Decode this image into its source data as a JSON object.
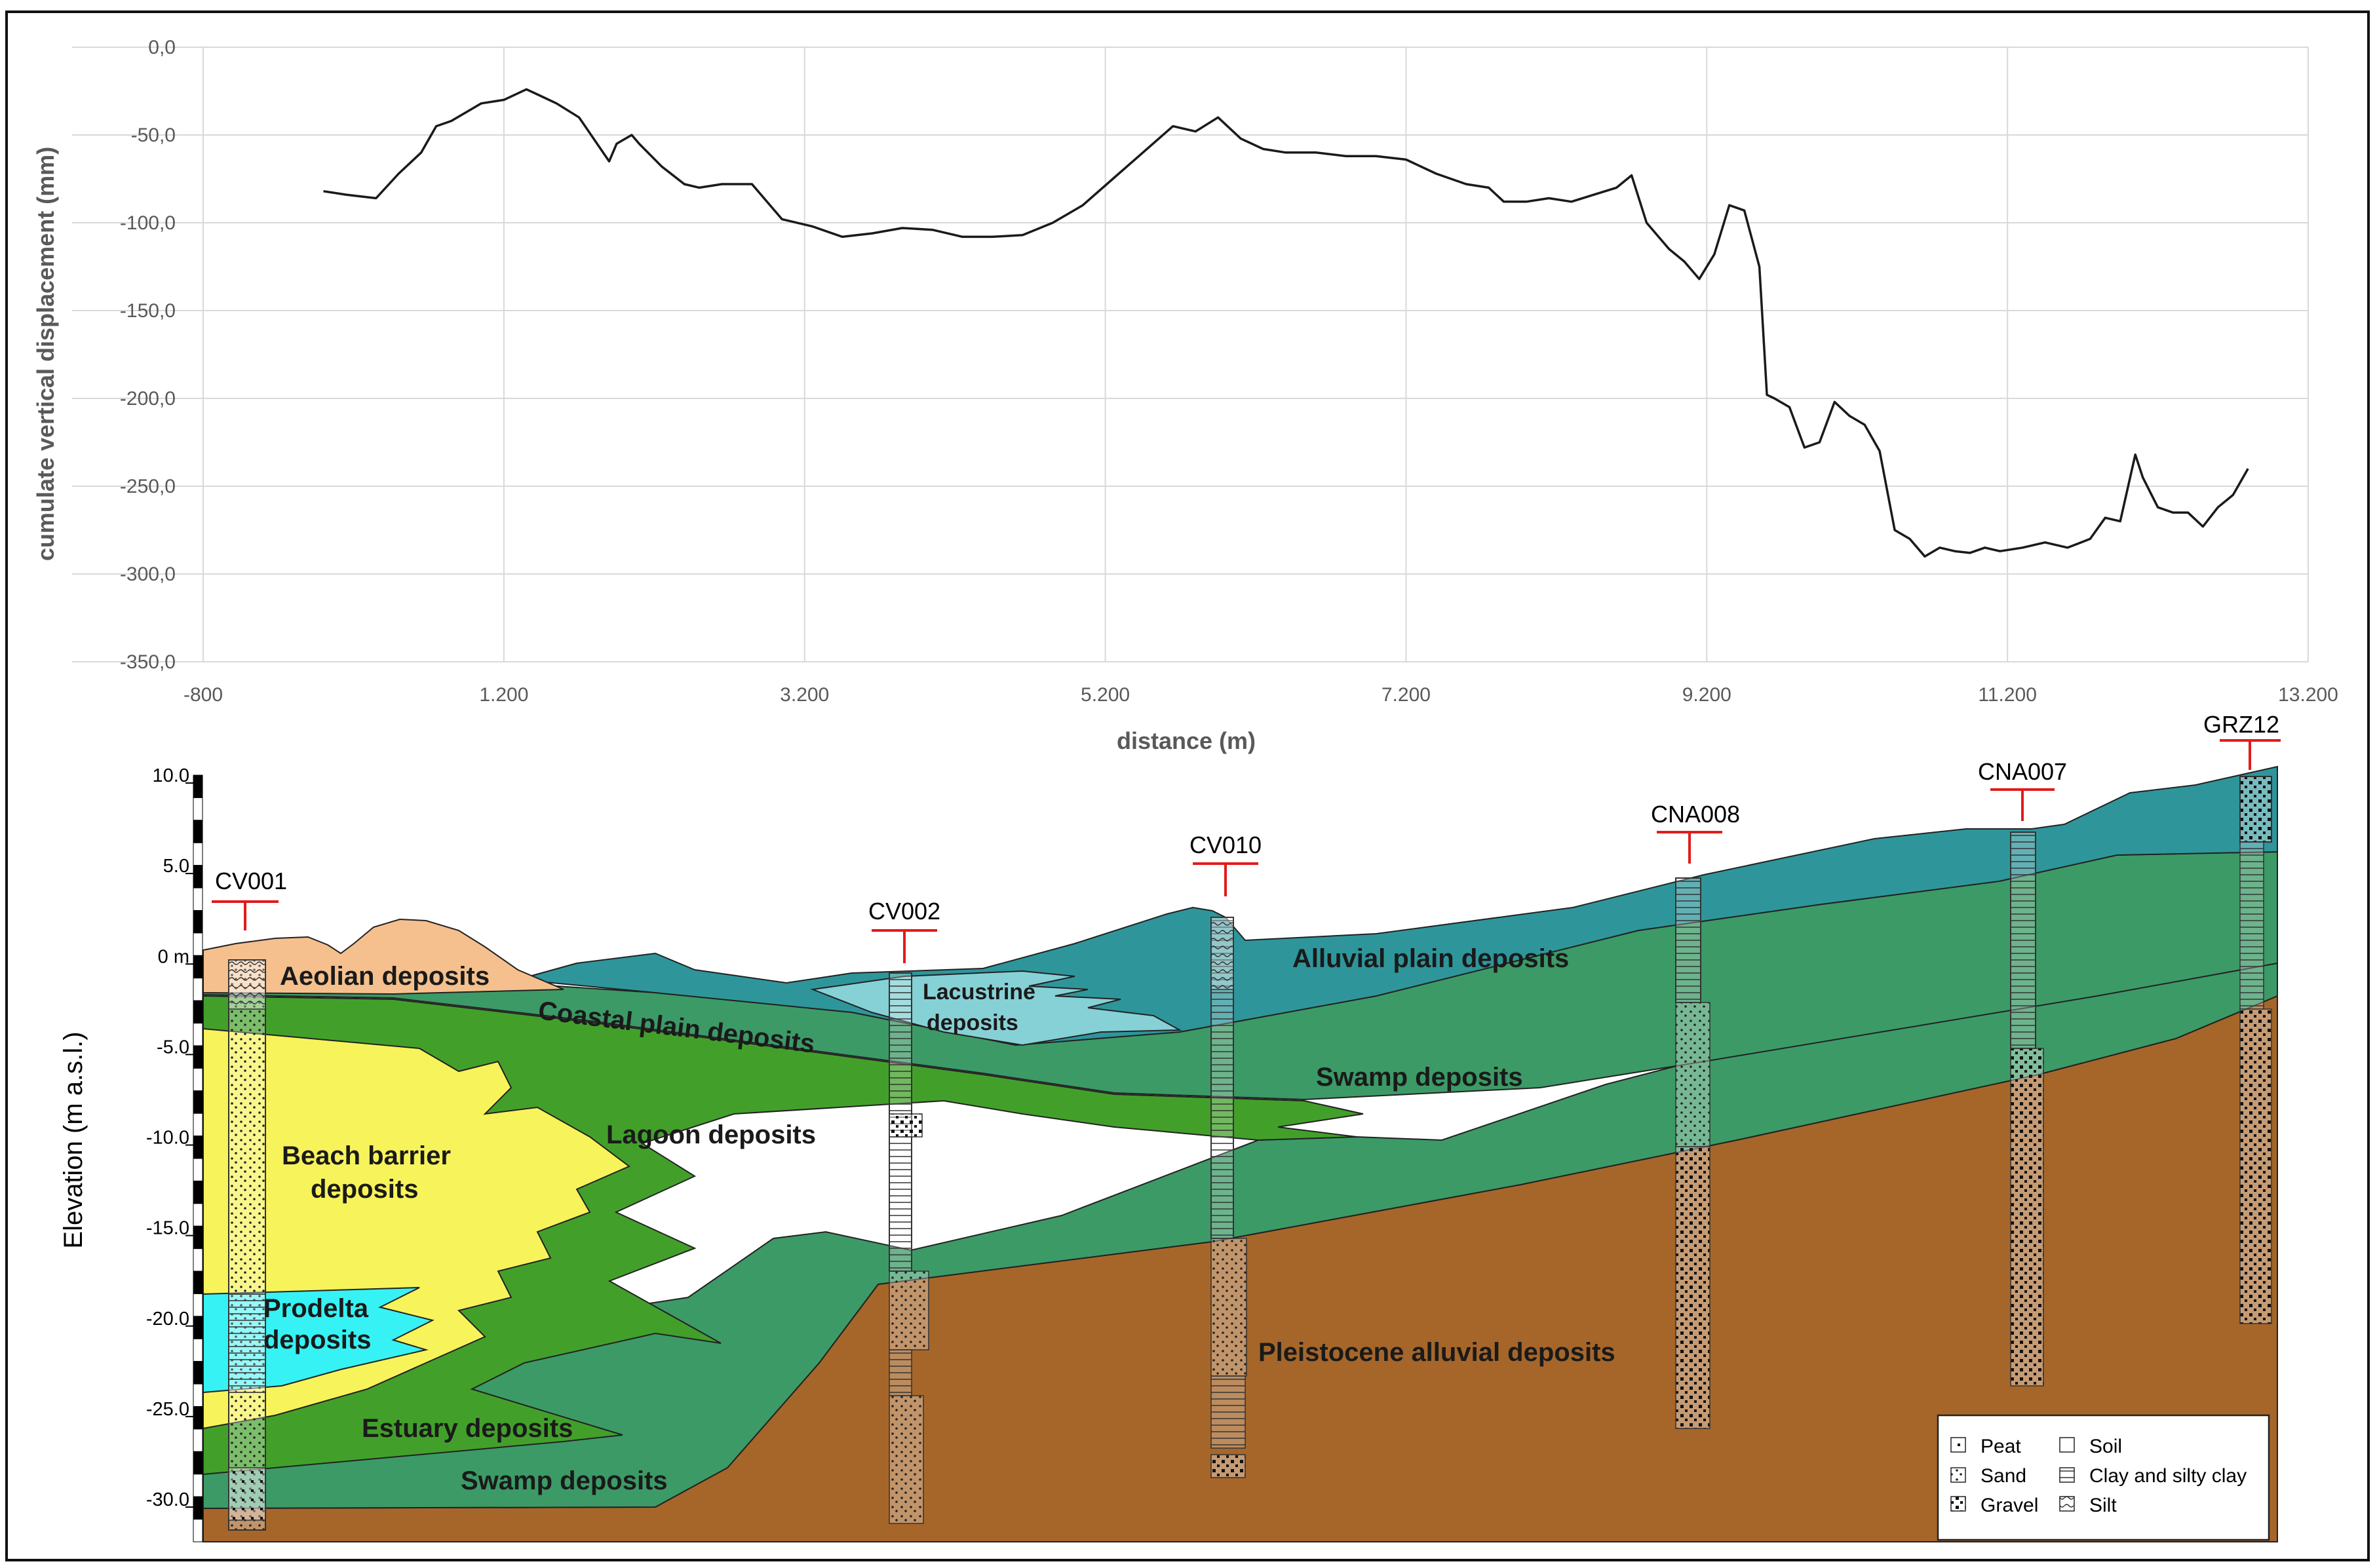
{
  "chart_data": [
    {
      "type": "line",
      "title": "",
      "xlabel": "distance (m)",
      "ylabel": "cumulate vertical displacement (mm)",
      "xlim": [
        -800,
        13200
      ],
      "ylim": [
        -350,
        0
      ],
      "grid": true,
      "x_ticks": [
        -800,
        1200,
        3200,
        5200,
        7200,
        9200,
        11200,
        13200
      ],
      "x_tick_labels": [
        "-800",
        "1.200",
        "3.200",
        "5.200",
        "7.200",
        "9.200",
        "11.200",
        "13.200"
      ],
      "y_ticks": [
        0,
        -50,
        -100,
        -150,
        -200,
        -250,
        -300,
        -350
      ],
      "y_tick_labels": [
        "0,0",
        "-50,0",
        "-100,0",
        "-150,0",
        "-200,0",
        "-250,0",
        "-300,0",
        "-350,0"
      ],
      "series": [
        {
          "name": "cumulate vertical displacement",
          "color": "#1a1a1a",
          "x": [
            0,
            150,
            350,
            500,
            650,
            750,
            850,
            1050,
            1200,
            1350,
            1450,
            1550,
            1700,
            1900,
            1950,
            2050,
            2100,
            2250,
            2400,
            2500,
            2650,
            2850,
            3050,
            3250,
            3450,
            3650,
            3850,
            4050,
            4250,
            4450,
            4650,
            4850,
            5050,
            5250,
            5450,
            5650,
            5800,
            5950,
            6100,
            6250,
            6400,
            6600,
            6800,
            7000,
            7200,
            7400,
            7600,
            7750,
            7850,
            8000,
            8150,
            8300,
            8450,
            8600,
            8700,
            8800,
            8950,
            9050,
            9150,
            9250,
            9350,
            9450,
            9550,
            9600,
            9650,
            9750,
            9850,
            9950,
            10050,
            10150,
            10250,
            10350,
            10450,
            10550,
            10650,
            10750,
            10850,
            10950,
            11050,
            11150,
            11300,
            11450,
            11600,
            11750,
            11850,
            11950,
            12050,
            12100,
            12200,
            12300,
            12400,
            12500,
            12600,
            12700,
            12800
          ],
          "values": [
            -82,
            -84,
            -86,
            -72,
            -60,
            -45,
            -42,
            -32,
            -30,
            -24,
            -28,
            -32,
            -40,
            -65,
            -55,
            -50,
            -55,
            -68,
            -78,
            -80,
            -78,
            -78,
            -98,
            -102,
            -108,
            -106,
            -103,
            -104,
            -108,
            -108,
            -107,
            -100,
            -90,
            -75,
            -60,
            -45,
            -48,
            -40,
            -52,
            -58,
            -60,
            -60,
            -62,
            -62,
            -64,
            -72,
            -78,
            -80,
            -88,
            -88,
            -86,
            -88,
            -84,
            -80,
            -73,
            -100,
            -115,
            -122,
            -132,
            -118,
            -90,
            -93,
            -125,
            -198,
            -200,
            -205,
            -228,
            -225,
            -202,
            -210,
            -215,
            -230,
            -275,
            -280,
            -290,
            -285,
            -287,
            -288,
            -285,
            -287,
            -285,
            -282,
            -285,
            -280,
            -268,
            -270,
            -232,
            -245,
            -262,
            -265,
            -265,
            -273,
            -262,
            -255,
            -240
          ]
        }
      ]
    },
    {
      "type": "cross-section",
      "title": "",
      "ylabel": "Elevation (m a.s.l.)",
      "ylim": [
        -30,
        10
      ],
      "y_tick_labels": [
        "10.0",
        "5.0",
        "0 m",
        "-5.0",
        "-10.0",
        "-15.0",
        "-20.0",
        "-25.0",
        "-30.0"
      ],
      "units": [
        {
          "name": "Aeolian deposits",
          "color": "#f5c08e"
        },
        {
          "name": "Coastal plain deposits",
          "color": "#3c9a66"
        },
        {
          "name": "Lacustrine deposits",
          "color": "#86d1d6"
        },
        {
          "name": "Alluvial plain deposits",
          "color": "#2e969b"
        },
        {
          "name": "Beach barrier deposits",
          "color": "#f7f35a"
        },
        {
          "name": "Lagoon deposits",
          "color": "#42a02a"
        },
        {
          "name": "Swamp deposits",
          "color": "#3c9a66"
        },
        {
          "name": "Prodelta deposits",
          "color": "#36f2f4"
        },
        {
          "name": "Estuary deposits",
          "color": "#42a02a"
        },
        {
          "name": "Swamp deposits",
          "color": "#3c9a66"
        },
        {
          "name": "Pleistocene alluvial deposits",
          "color": "#a6662a"
        }
      ],
      "boreholes": [
        "CV001",
        "CV002",
        "CV010",
        "CNA008",
        "CNA007",
        "GRZ12"
      ],
      "legend": [
        "Peat",
        "Sand",
        "Gravel",
        "Soil",
        "Clay and silty clay",
        "Silt"
      ]
    }
  ]
}
